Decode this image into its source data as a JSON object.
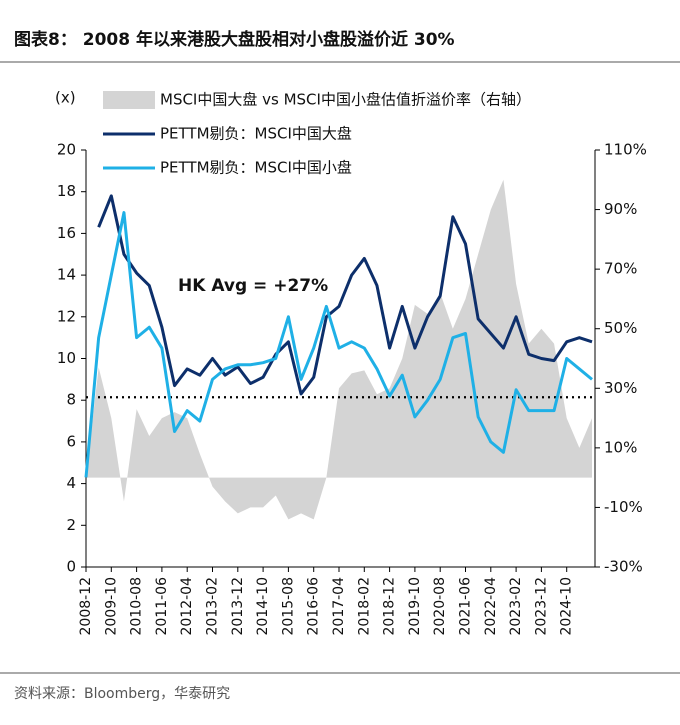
{
  "chart_data": {
    "type": "combo",
    "title": "图表8： 2008 年以来港股大盘股相对小盘股溢价近 30%",
    "y_label": "(x)",
    "source": "资料来源：Bloomberg，华泰研究",
    "categories": [
      "2008-12",
      null,
      "2009-10",
      null,
      "2010-08",
      null,
      "2011-06",
      null,
      "2012-04",
      null,
      "2013-02",
      null,
      "2013-12",
      null,
      "2014-10",
      null,
      "2015-08",
      null,
      "2016-06",
      null,
      "2017-04",
      null,
      "2018-02",
      null,
      "2018-12",
      null,
      "2019-10",
      null,
      "2020-08",
      null,
      "2021-06",
      null,
      "2022-04",
      null,
      "2023-02",
      null,
      "2023-12",
      null,
      "2024-10",
      null,
      null
    ],
    "series": [
      {
        "name": "MSCI中国大盘 vs MSCI中国小盘估值折溢价率（右轴）",
        "type": "area",
        "axis": "y2",
        "color": "#d4d4d4",
        "values": [
          0,
          37,
          20,
          -8,
          23,
          14,
          20,
          22,
          20,
          8,
          -3,
          -8,
          -12,
          -10,
          -10,
          -6,
          -14,
          -12,
          -14,
          0,
          30,
          35,
          36,
          28,
          30,
          40,
          58,
          55,
          62,
          50,
          60,
          75,
          90,
          100,
          65,
          45,
          50,
          45,
          20,
          10,
          20
        ]
      },
      {
        "name": "PETTM剔负：MSCI中国大盘",
        "type": "line",
        "color": "#0d2f6b",
        "values": [
          null,
          16.3,
          17.8,
          15,
          14.1,
          13.5,
          11.5,
          8.7,
          9.5,
          9.2,
          10.0,
          9.2,
          9.6,
          8.8,
          9.1,
          10.2,
          10.8,
          8.3,
          9.1,
          12.0,
          12.5,
          14.0,
          14.8,
          13.5,
          10.5,
          12.5,
          10.5,
          12.0,
          13.0,
          16.8,
          15.5,
          11.9,
          11.2,
          10.5,
          12.0,
          10.2,
          10.0,
          9.9,
          10.8,
          11.0,
          10.8
        ]
      },
      {
        "name": "PETTM剔负：MSCI中国小盘",
        "type": "line",
        "color": "#1fb0e6",
        "values": [
          4.3,
          11.0,
          14.0,
          17.0,
          11.0,
          11.5,
          10.5,
          6.5,
          7.5,
          7.0,
          9.0,
          9.5,
          9.7,
          9.7,
          9.8,
          10.0,
          12.0,
          9.0,
          10.5,
          12.5,
          10.5,
          10.8,
          10.5,
          9.5,
          8.2,
          9.2,
          7.2,
          8.0,
          9.0,
          11.0,
          11.2,
          7.2,
          6.0,
          5.5,
          8.5,
          7.5,
          7.5,
          7.5,
          10.0,
          9.5,
          9.0
        ]
      }
    ],
    "reference_line": {
      "value": 27,
      "axis": "y2",
      "label": "HK Avg = +27%"
    },
    "ylim": [
      0,
      20
    ],
    "yticks": [
      0,
      2,
      4,
      6,
      8,
      10,
      12,
      14,
      16,
      18,
      20
    ],
    "y2lim": [
      -30,
      110
    ],
    "y2ticks": [
      {
        "value": -30,
        "label": "-30%"
      },
      {
        "value": -10,
        "label": "-10%"
      },
      {
        "value": 10,
        "label": "10%"
      },
      {
        "value": 30,
        "label": "30%"
      },
      {
        "value": 50,
        "label": "50%"
      },
      {
        "value": 70,
        "label": "70%"
      },
      {
        "value": 90,
        "label": "90%"
      },
      {
        "value": 110,
        "label": "110%"
      }
    ]
  }
}
